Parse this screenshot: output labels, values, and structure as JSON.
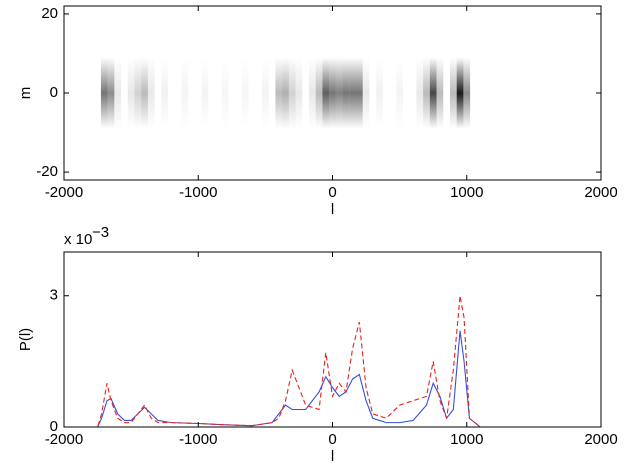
{
  "chart_data": [
    {
      "type": "heatmap",
      "xlabel": "l",
      "ylabel": "m",
      "x": [
        -1700,
        -1650,
        -1600,
        -1500,
        -1450,
        -1400,
        -1350,
        -1250,
        -1100,
        -950,
        -800,
        -650,
        -500,
        -400,
        -350,
        -300,
        -250,
        -150,
        -100,
        -50,
        0,
        50,
        100,
        150,
        200,
        250,
        350,
        500,
        650,
        700,
        750,
        800,
        900,
        950,
        1000
      ],
      "values": [
        0.6,
        0.5,
        0.1,
        0.1,
        0.2,
        0.3,
        0.1,
        0.06,
        0.05,
        0.05,
        0.04,
        0.04,
        0.05,
        0.3,
        0.35,
        0.2,
        0.1,
        0.1,
        0.3,
        0.7,
        0.6,
        0.55,
        0.6,
        0.6,
        0.6,
        0.1,
        0.06,
        0.05,
        0.1,
        0.3,
        0.8,
        0.3,
        0.3,
        1.0,
        0.5
      ],
      "color": "#000000",
      "xlim": [
        -2000,
        2000
      ],
      "xticks": [
        -2000,
        -1000,
        0,
        1000,
        2000
      ],
      "ylim": [
        -22,
        22
      ],
      "yticks": [
        -20,
        0,
        20
      ]
    },
    {
      "type": "line",
      "xlabel": "l",
      "ylabel": "P(l)",
      "y_multiplier": "x 10",
      "y_exponent": "−3",
      "x": [
        -1800,
        -1750,
        -1720,
        -1680,
        -1650,
        -1600,
        -1550,
        -1500,
        -1450,
        -1400,
        -1350,
        -1300,
        -1200,
        -1000,
        -800,
        -600,
        -450,
        -400,
        -350,
        -300,
        -200,
        -100,
        -50,
        0,
        50,
        100,
        150,
        200,
        250,
        300,
        400,
        500,
        600,
        700,
        750,
        800,
        850,
        900,
        950,
        980,
        1020,
        1100,
        2000
      ],
      "series": [
        {
          "color": "#3a4fd8",
          "dash": false,
          "values": [
            0,
            0,
            0.0002,
            0.0006,
            0.00065,
            0.0003,
            0.00015,
            0.00015,
            0.0003,
            0.00045,
            0.0003,
            0.00015,
            0.0001,
            8e-05,
            5e-05,
            3e-05,
            0.0001,
            0.0003,
            0.0005,
            0.0004,
            0.0004,
            0.0008,
            0.00115,
            0.0009,
            0.0007,
            0.0008,
            0.0011,
            0.0012,
            0.0006,
            0.0002,
            0.0001,
            0.0001,
            0.00015,
            0.0005,
            0.001,
            0.0007,
            0.0002,
            0.0004,
            0.0022,
            0.0015,
            0.0002,
            0,
            0
          ]
        },
        {
          "color": "#e8221e",
          "dash": true,
          "values": [
            0,
            0,
            0.0003,
            0.001,
            0.0006,
            0.0002,
            0.0001,
            0.0001,
            0.0003,
            0.0005,
            0.0002,
            0.0001,
            0.0001,
            8e-05,
            5e-05,
            3e-05,
            0.0001,
            0.0002,
            0.0006,
            0.0013,
            0.0005,
            0.0004,
            0.0017,
            0.0007,
            0.001,
            0.0008,
            0.0018,
            0.0024,
            0.0009,
            0.0003,
            0.0002,
            0.0005,
            0.0006,
            0.0007,
            0.0015,
            0.0006,
            0.0002,
            0.0013,
            0.003,
            0.0025,
            0.0002,
            0,
            0
          ]
        }
      ],
      "xlim": [
        -2000,
        2000
      ],
      "xticks": [
        -2000,
        -1000,
        0,
        1000,
        2000
      ],
      "ylim": [
        0,
        0.004
      ],
      "yticks": [
        0,
        {
          "value": 0.003,
          "label": "3"
        }
      ]
    }
  ]
}
